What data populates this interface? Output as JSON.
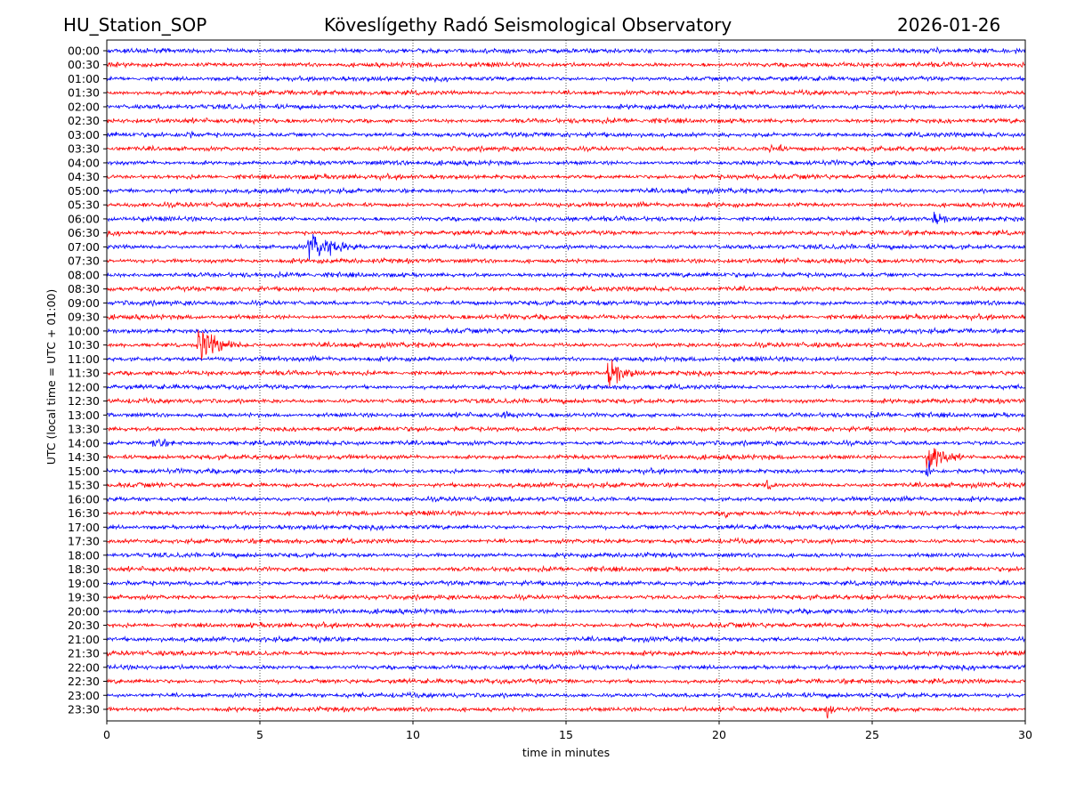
{
  "chart_data": {
    "type": "line",
    "station": "HU_Station_SOP",
    "title": "Köveslígethy Radó Seismological Observatory",
    "date": "2026-01-26",
    "xlabel": "time in minutes",
    "ylabel": "UTC (local time = UTC + 01:00)",
    "xlim": [
      0,
      30
    ],
    "xticks": [
      "0",
      "5",
      "10",
      "15",
      "20",
      "25",
      "30"
    ],
    "grid": "vertical dotted at 5-minute intervals",
    "series_colors": [
      "#0000ff",
      "#ff0000"
    ],
    "rows": [
      "00:00",
      "00:30",
      "01:00",
      "01:30",
      "02:00",
      "02:30",
      "03:00",
      "03:30",
      "04:00",
      "04:30",
      "05:00",
      "05:30",
      "06:00",
      "06:30",
      "07:00",
      "07:30",
      "08:00",
      "08:30",
      "09:00",
      "09:30",
      "10:00",
      "10:30",
      "11:00",
      "11:30",
      "12:00",
      "12:30",
      "13:00",
      "13:30",
      "14:00",
      "14:30",
      "15:00",
      "15:30",
      "16:00",
      "16:30",
      "17:00",
      "17:30",
      "18:00",
      "18:30",
      "19:00",
      "19:30",
      "20:00",
      "20:30",
      "21:00",
      "21:30",
      "22:00",
      "22:30",
      "23:00",
      "23:30"
    ],
    "events": [
      {
        "row": "03:00",
        "minute": 2.6,
        "duration": 1.2,
        "amplitude": 4
      },
      {
        "row": "03:30",
        "minute": 21.7,
        "duration": 1.2,
        "amplitude": 6
      },
      {
        "row": "06:00",
        "minute": 27.0,
        "duration": 1.6,
        "amplitude": 6
      },
      {
        "row": "07:00",
        "minute": 6.6,
        "duration": 3.0,
        "amplitude": 11
      },
      {
        "row": "10:30",
        "minute": 3.0,
        "duration": 2.2,
        "amplitude": 15
      },
      {
        "row": "11:00",
        "minute": 13.2,
        "duration": 0.6,
        "amplitude": 5
      },
      {
        "row": "11:30",
        "minute": 16.4,
        "duration": 1.6,
        "amplitude": 13
      },
      {
        "row": "13:00",
        "minute": 13.0,
        "duration": 1.0,
        "amplitude": 4
      },
      {
        "row": "14:00",
        "minute": 1.5,
        "duration": 2.0,
        "amplitude": 5
      },
      {
        "row": "14:30",
        "minute": 26.8,
        "duration": 1.6,
        "amplitude": 17
      },
      {
        "row": "15:00",
        "minute": 26.8,
        "duration": 0.5,
        "amplitude": 8
      },
      {
        "row": "15:30",
        "minute": 21.5,
        "duration": 1.5,
        "amplitude": 4
      },
      {
        "row": "16:30",
        "minute": 20.2,
        "duration": 0.5,
        "amplitude": 5
      },
      {
        "row": "21:00",
        "minute": 7.0,
        "duration": 2.0,
        "amplitude": 4
      },
      {
        "row": "23:30",
        "minute": 23.5,
        "duration": 0.6,
        "amplitude": 10
      }
    ]
  }
}
